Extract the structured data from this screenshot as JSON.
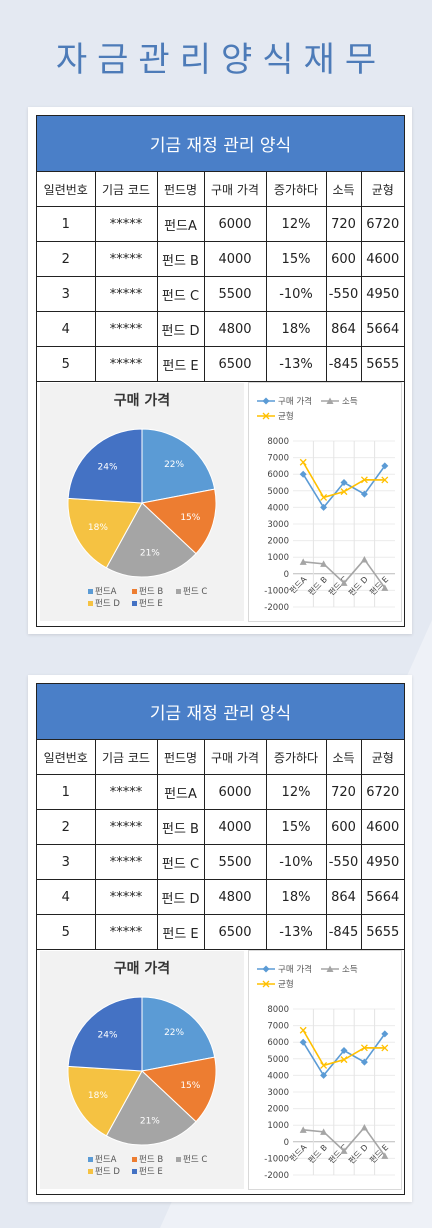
{
  "title": "자금관리양식재무",
  "cards": [
    {
      "table": {
        "title": "기금 재정 관리 양식",
        "columns": [
          "일련번호",
          "기금 코드",
          "펀드명",
          "구매 가격",
          "증가하다",
          "소득",
          "균형"
        ],
        "rows": [
          [
            "1",
            "*****",
            "펀드A",
            "6000",
            "12%",
            "720",
            "6720"
          ],
          [
            "2",
            "*****",
            "펀드 B",
            "4000",
            "15%",
            "600",
            "4600"
          ],
          [
            "3",
            "*****",
            "펀드 C",
            "5500",
            "-10%",
            "-550",
            "4950"
          ],
          [
            "4",
            "*****",
            "펀드 D",
            "4800",
            "18%",
            "864",
            "5664"
          ],
          [
            "5",
            "*****",
            "펀드 E",
            "6500",
            "-13%",
            "-845",
            "5655"
          ]
        ]
      },
      "pie": {
        "type": "pie",
        "title": "구매 가격",
        "categories": [
          "펀드A",
          "펀드 B",
          "펀드 C",
          "펀드 D",
          "펀드 E"
        ],
        "values": [
          22,
          15,
          21,
          18,
          24
        ],
        "value_labels": [
          "22%",
          "15%",
          "21%",
          "18%",
          "24%"
        ],
        "colors": [
          "#5b9bd5",
          "#ed7d31",
          "#a5a5a5",
          "#f5c242",
          "#4472c4"
        ]
      },
      "line": {
        "type": "line",
        "categories": [
          "펀드A",
          "펀드 B",
          "펀드 C",
          "펀드 D",
          "펀드 E"
        ],
        "series": [
          {
            "name": "구매 가격",
            "color": "#5b9bd5",
            "marker": "diamond",
            "values": [
              6000,
              4000,
              5500,
              4800,
              6500
            ]
          },
          {
            "name": "소득",
            "color": "#a5a5a5",
            "marker": "triangle",
            "values": [
              720,
              600,
              -550,
              864,
              -845
            ]
          },
          {
            "name": "균형",
            "color": "#ffc000",
            "marker": "x",
            "values": [
              6720,
              4600,
              4950,
              5664,
              5655
            ]
          }
        ],
        "ylim": [
          -2000,
          8000
        ],
        "yticks": [
          -2000,
          -1000,
          0,
          1000,
          2000,
          3000,
          4000,
          5000,
          6000,
          7000,
          8000
        ],
        "grid": true
      }
    },
    {
      "table": {
        "title": "기금 재정 관리 양식",
        "columns": [
          "일련번호",
          "기금 코드",
          "펀드명",
          "구매 가격",
          "증가하다",
          "소득",
          "균형"
        ],
        "rows": [
          [
            "1",
            "*****",
            "펀드A",
            "6000",
            "12%",
            "720",
            "6720"
          ],
          [
            "2",
            "*****",
            "펀드 B",
            "4000",
            "15%",
            "600",
            "4600"
          ],
          [
            "3",
            "*****",
            "펀드 C",
            "5500",
            "-10%",
            "-550",
            "4950"
          ],
          [
            "4",
            "*****",
            "펀드 D",
            "4800",
            "18%",
            "864",
            "5664"
          ],
          [
            "5",
            "*****",
            "펀드 E",
            "6500",
            "-13%",
            "-845",
            "5655"
          ]
        ]
      },
      "pie": {
        "type": "pie",
        "title": "구매 가격",
        "categories": [
          "펀드A",
          "펀드 B",
          "펀드 C",
          "펀드 D",
          "펀드 E"
        ],
        "values": [
          22,
          15,
          21,
          18,
          24
        ],
        "value_labels": [
          "22%",
          "15%",
          "21%",
          "18%",
          "24%"
        ],
        "colors": [
          "#5b9bd5",
          "#ed7d31",
          "#a5a5a5",
          "#f5c242",
          "#4472c4"
        ]
      },
      "line": {
        "type": "line",
        "categories": [
          "펀드A",
          "펀드 B",
          "펀드 C",
          "펀드 D",
          "펀드 E"
        ],
        "series": [
          {
            "name": "구매 가격",
            "color": "#5b9bd5",
            "marker": "diamond",
            "values": [
              6000,
              4000,
              5500,
              4800,
              6500
            ]
          },
          {
            "name": "소득",
            "color": "#a5a5a5",
            "marker": "triangle",
            "values": [
              720,
              600,
              -550,
              864,
              -845
            ]
          },
          {
            "name": "균형",
            "color": "#ffc000",
            "marker": "x",
            "values": [
              6720,
              4600,
              4950,
              5664,
              5655
            ]
          }
        ],
        "ylim": [
          -2000,
          8000
        ],
        "yticks": [
          -2000,
          -1000,
          0,
          1000,
          2000,
          3000,
          4000,
          5000,
          6000,
          7000,
          8000
        ],
        "grid": true
      }
    }
  ]
}
